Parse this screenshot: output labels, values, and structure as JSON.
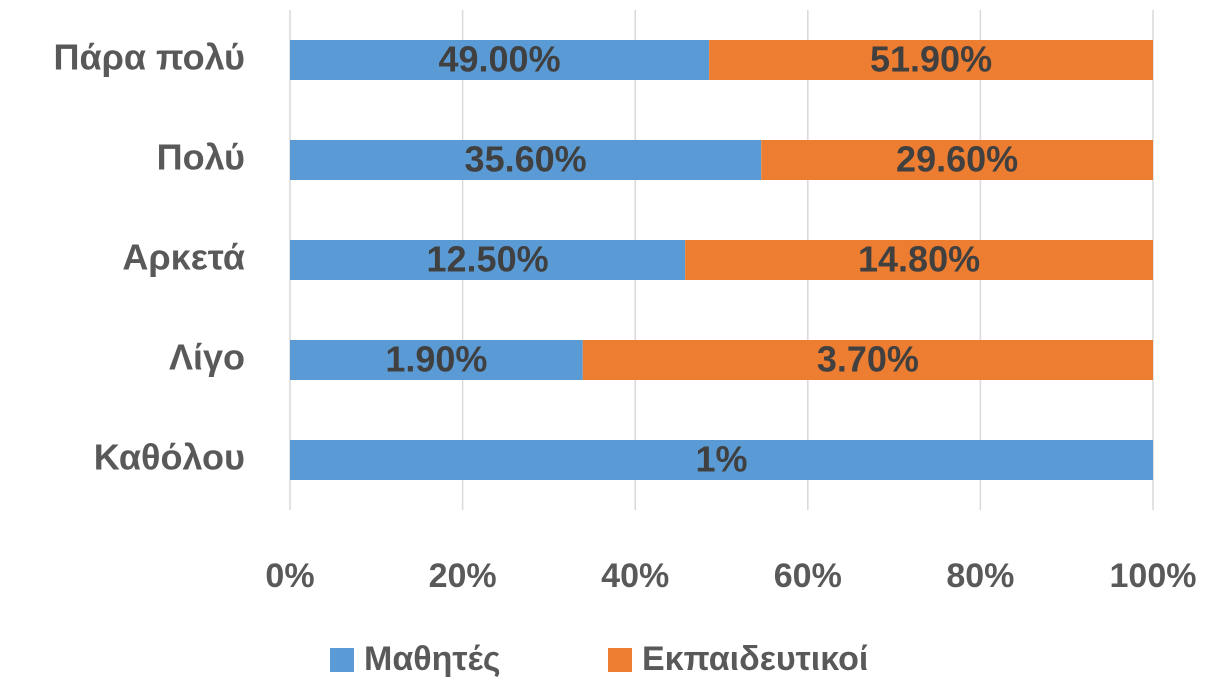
{
  "chart_data": {
    "type": "bar",
    "orientation": "horizontal",
    "stacking": "percent",
    "categories": [
      "Πάρα πολύ",
      "Πολύ",
      "Αρκετά",
      "Λίγο",
      "Καθόλου"
    ],
    "series": [
      {
        "name": "Μαθητές",
        "color": "#5b9bd5",
        "values": [
          49.0,
          35.6,
          12.5,
          1.9,
          1
        ],
        "value_labels": [
          "49.00%",
          "35.60%",
          "12.50%",
          "1.90%",
          "1%"
        ]
      },
      {
        "name": "Εκπαιδευτικοί",
        "color": "#ed7d31",
        "values": [
          51.9,
          29.6,
          14.8,
          3.7,
          0
        ],
        "value_labels": [
          "51.90%",
          "29.60%",
          "14.80%",
          "3.70%",
          null
        ]
      }
    ],
    "xlim": [
      0,
      100
    ],
    "xticks": [
      {
        "value": 0,
        "label": "0%"
      },
      {
        "value": 20,
        "label": "20%"
      },
      {
        "value": 40,
        "label": "40%"
      },
      {
        "value": 60,
        "label": "60%"
      },
      {
        "value": 80,
        "label": "80%"
      },
      {
        "value": 100,
        "label": "100%"
      }
    ],
    "grid": true,
    "legend": "bottom"
  }
}
